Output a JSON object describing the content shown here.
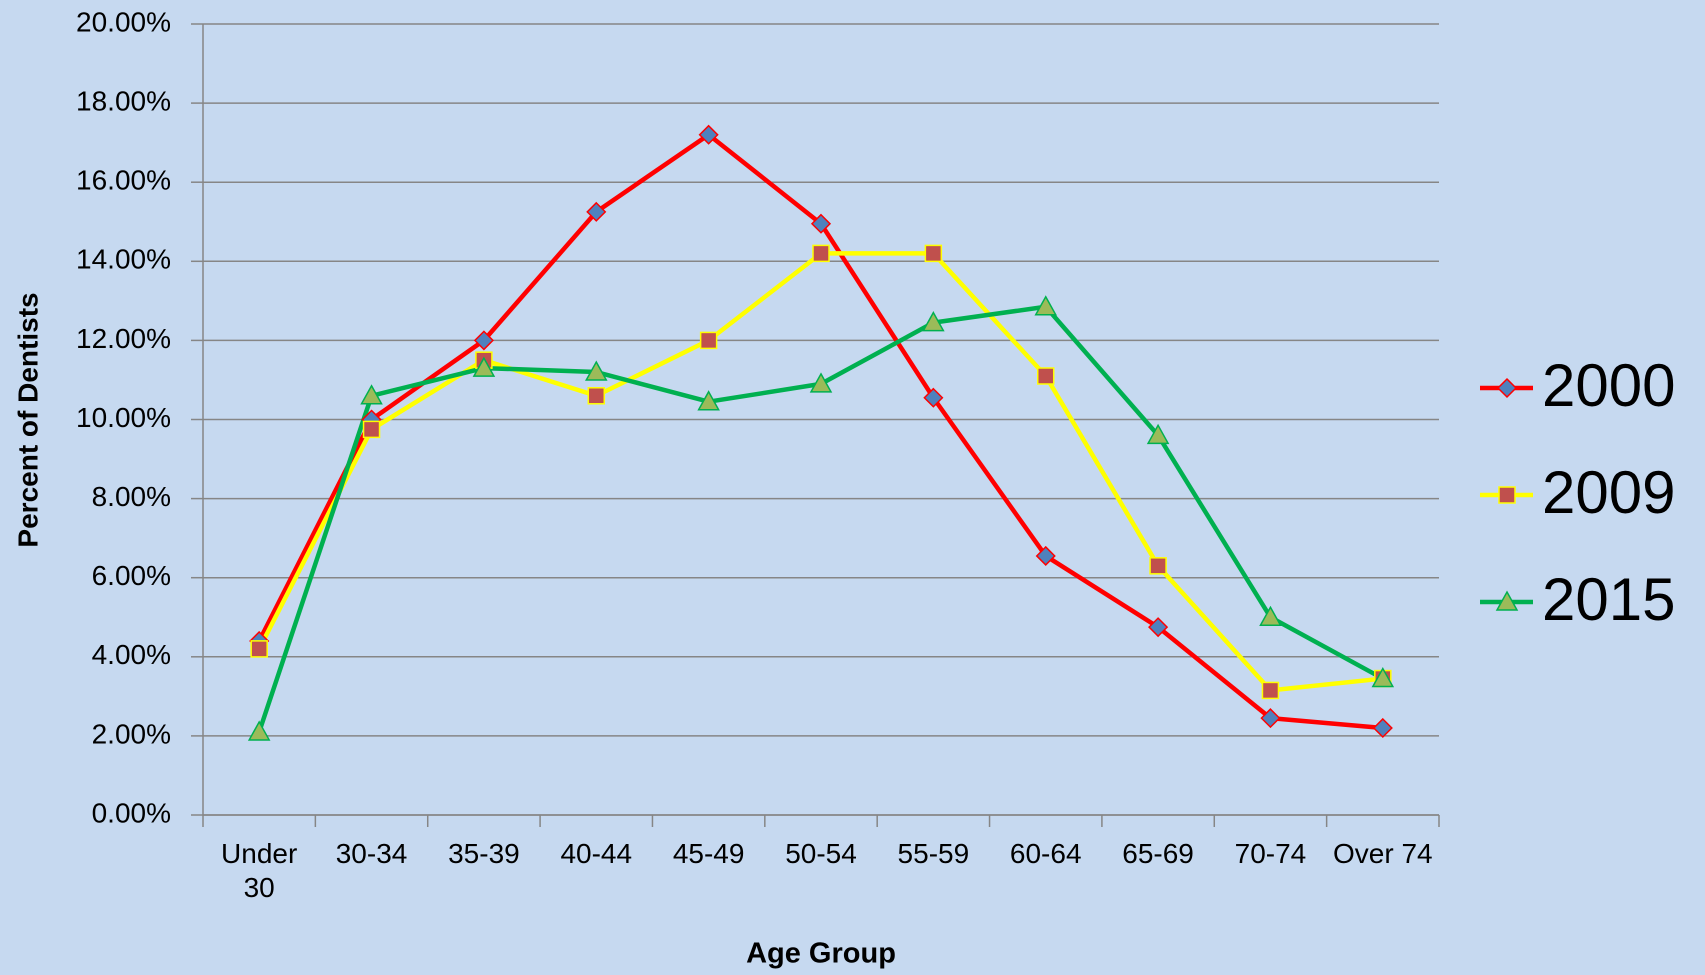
{
  "chart_data": {
    "type": "line",
    "x_label": "Age Group",
    "y_label": "Percent of Dentists",
    "categories": [
      "Under 30",
      "30-34",
      "35-39",
      "40-44",
      "45-49",
      "50-54",
      "55-59",
      "60-64",
      "65-69",
      "70-74",
      "Over 74"
    ],
    "series": [
      {
        "name": "2000",
        "color": "#ff0000",
        "marker": "diamond",
        "marker_color": "#4f81bd",
        "values": [
          4.4,
          10.0,
          12.0,
          15.25,
          17.2,
          14.95,
          10.55,
          6.55,
          4.75,
          2.45,
          2.2
        ]
      },
      {
        "name": "2009",
        "color": "#ffff00",
        "marker": "square",
        "marker_color": "#c0504d",
        "values": [
          4.2,
          9.75,
          11.5,
          10.6,
          12.0,
          14.2,
          14.2,
          11.1,
          6.3,
          3.15,
          3.45
        ]
      },
      {
        "name": "2015",
        "color": "#00b050",
        "marker": "triangle",
        "marker_color": "#9bbb59",
        "values": [
          2.1,
          10.6,
          11.3,
          11.2,
          10.45,
          10.9,
          12.45,
          12.85,
          9.6,
          5.0,
          3.45
        ]
      }
    ],
    "ylim": [
      0,
      20
    ],
    "yticks": [
      {
        "value": 0,
        "label": "0.00%"
      },
      {
        "value": 2,
        "label": "2.00%"
      },
      {
        "value": 4,
        "label": "4.00%"
      },
      {
        "value": 6,
        "label": "6.00%"
      },
      {
        "value": 8,
        "label": "8.00%"
      },
      {
        "value": 10,
        "label": "10.00%"
      },
      {
        "value": 12,
        "label": "12.00%"
      },
      {
        "value": 14,
        "label": "14.00%"
      },
      {
        "value": 16,
        "label": "16.00%"
      },
      {
        "value": 18,
        "label": "18.00%"
      },
      {
        "value": 20,
        "label": "20.00%"
      }
    ],
    "grid": true,
    "legend": "right"
  }
}
